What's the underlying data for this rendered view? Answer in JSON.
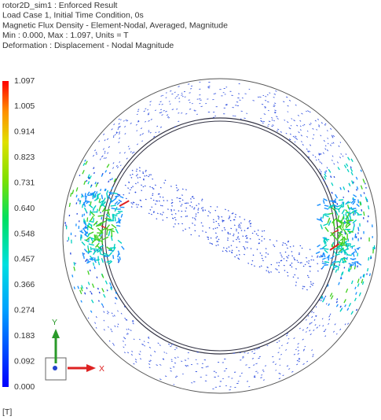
{
  "header": {
    "lines": [
      "rotor2D_sim1 : Enforced Result",
      "Load Case 1, Initial Time Condition, 0s",
      "Magnetic Flux Density - Element-Nodal, Averaged, Magnitude",
      "Min : 0.000, Max : 1.097, Units = T",
      "Deformation : Displacement - Nodal Magnitude"
    ]
  },
  "legend": {
    "labels": [
      "1.097",
      "1.005",
      "0.914",
      "0.823",
      "0.731",
      "0.640",
      "0.548",
      "0.457",
      "0.366",
      "0.274",
      "0.183",
      "0.092",
      "0.000"
    ],
    "unit": "[T]"
  },
  "triad": {
    "x": "X",
    "y": "Y"
  }
}
